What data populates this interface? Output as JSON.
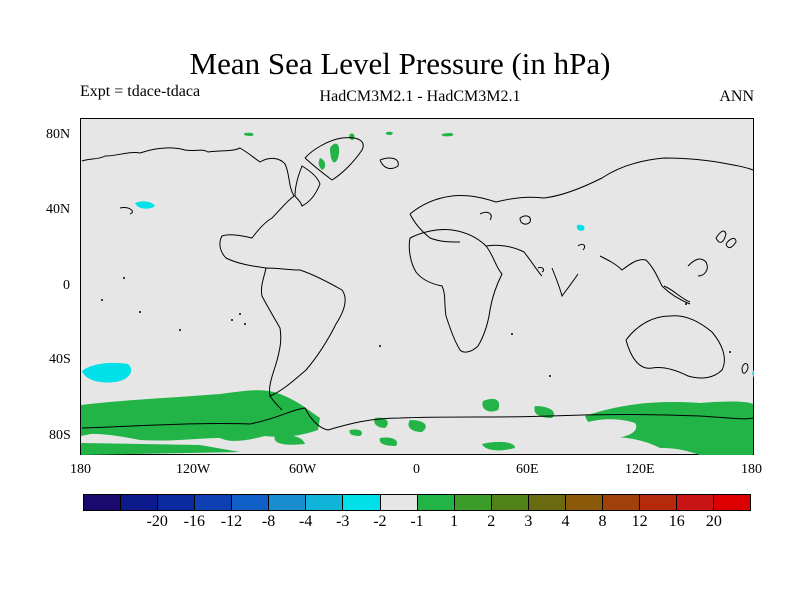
{
  "title": "Mean Sea Level Pressure (in hPa)",
  "experiment": "Expt = tdace-tdaca",
  "models": "HadCM3M2.1 - HadCM3M2.1",
  "season": "ANN",
  "map": {
    "background_color": "#e6e6e6",
    "lat_labels": [
      "80N",
      "40N",
      "0",
      "40S",
      "80S"
    ],
    "lon_labels": [
      "180",
      "120W",
      "60W",
      "0",
      "60E",
      "120E",
      "180"
    ]
  },
  "colorbar": {
    "colors": [
      "#1a0a6e",
      "#0c1a8c",
      "#0a2aa0",
      "#0e40b4",
      "#1060c8",
      "#1a8cd0",
      "#10b4d8",
      "#00e0e8",
      "#e6e6e6",
      "#22b447",
      "#3c9c2a",
      "#508218",
      "#6a6a10",
      "#8a5a0a",
      "#a0400a",
      "#b42a0a",
      "#c81414",
      "#dc0000"
    ],
    "labels": [
      "-20",
      "-16",
      "-12",
      "-8",
      "-4",
      "-3",
      "-2",
      "-1",
      "1",
      "2",
      "3",
      "4",
      "8",
      "12",
      "16",
      "20"
    ]
  }
}
